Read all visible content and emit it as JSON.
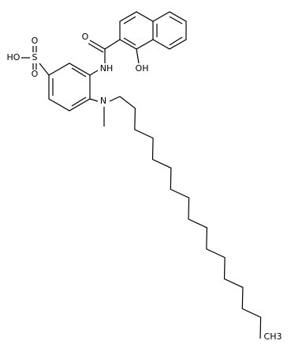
{
  "labels": {
    "hydroxyl_sulfo": "HO",
    "sulfur": "S",
    "sulfo_oxygen_top": "O",
    "sulfo_oxygen_bottom": "O",
    "carbonyl_oxygen": "O",
    "amide": "NH",
    "naphthol": "OH",
    "amine": "N",
    "terminal_methyl": "CH3"
  }
}
